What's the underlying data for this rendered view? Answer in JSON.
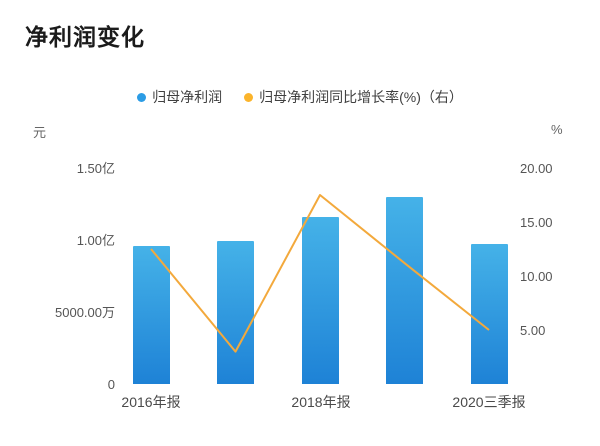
{
  "title": "净利润变化",
  "legend": [
    {
      "label": "归母净利润",
      "series_type": "bar"
    },
    {
      "label": "归母净利润同比增长率(%)（右）",
      "series_type": "line"
    }
  ],
  "left_axis": {
    "unit": "元",
    "ticks": [
      "1.50亿",
      "1.00亿",
      "5000.00万",
      "0"
    ]
  },
  "right_axis": {
    "unit": "%",
    "ticks": [
      "20.00",
      "15.00",
      "10.00",
      "5.00"
    ]
  },
  "x_axis": {
    "labels": [
      "2016年报",
      "2018年报",
      "2020三季报"
    ]
  },
  "colors": {
    "bar_top": "#45B2E8",
    "bar_bottom": "#1E82D6",
    "line": "#F3A93C",
    "legend_bar_dot": "#2B9CE5",
    "legend_line_dot": "#FBB42B",
    "title_text": "#1B1B1B",
    "axis_text": "#555555"
  },
  "chart_data": {
    "type": "combo",
    "n_points": 5,
    "x_tick_labels": [
      "2016年报",
      "2018年报",
      "2020三季报"
    ],
    "x_tick_positions": [
      0,
      2,
      4
    ],
    "left_ylim": [
      0,
      150000000
    ],
    "right_ylim": [
      0,
      20
    ],
    "grid": false,
    "legend_position": "top",
    "series": [
      {
        "name": "归母净利润",
        "type": "bar",
        "axis": "left",
        "unit": "元",
        "values": [
          96000000,
          99000000,
          116000000,
          130000000,
          97000000
        ]
      },
      {
        "name": "归母净利润同比增长率(%)（右）",
        "type": "line",
        "axis": "right",
        "unit": "%",
        "values": [
          12.5,
          3.0,
          17.5,
          11.2,
          5.0
        ]
      }
    ]
  }
}
